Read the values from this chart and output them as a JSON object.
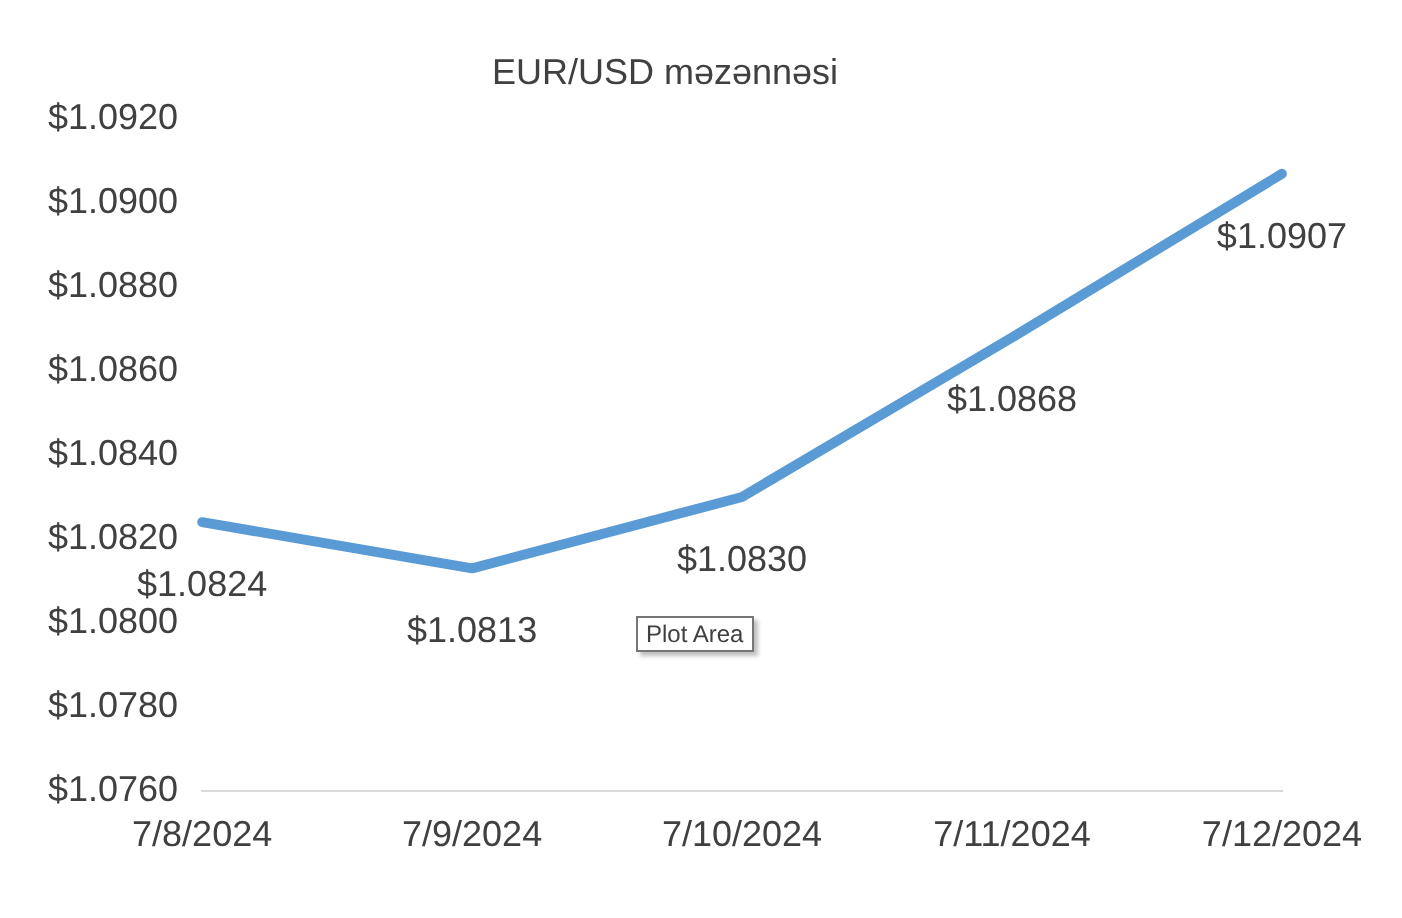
{
  "chart_data": {
    "type": "line",
    "title": "EUR/USD məzənnəsi",
    "categories": [
      "7/8/2024",
      "7/9/2024",
      "7/10/2024",
      "7/11/2024",
      "7/12/2024"
    ],
    "series": [
      {
        "color": "#5b9bd5",
        "values": [
          1.0824,
          1.0813,
          1.083,
          1.0868,
          1.0907
        ],
        "value_labels": [
          "$1.0824",
          "$1.0813",
          "$1.0830",
          "$1.0868",
          "$1.0907"
        ]
      }
    ],
    "ylim": [
      1.076,
      1.092
    ],
    "yticks": [
      {
        "value": 1.076,
        "label": "$1.0760"
      },
      {
        "value": 1.078,
        "label": "$1.0780"
      },
      {
        "value": 1.08,
        "label": "$1.0800"
      },
      {
        "value": 1.082,
        "label": "$1.0820"
      },
      {
        "value": 1.084,
        "label": "$1.0840"
      },
      {
        "value": 1.086,
        "label": "$1.0860"
      },
      {
        "value": 1.088,
        "label": "$1.0880"
      },
      {
        "value": 1.09,
        "label": "$1.0900"
      },
      {
        "value": 1.092,
        "label": "$1.0920"
      }
    ],
    "grid": false,
    "legend": false,
    "marker": "none",
    "line_style": "solid",
    "annotations": [
      "Plot Area"
    ]
  }
}
